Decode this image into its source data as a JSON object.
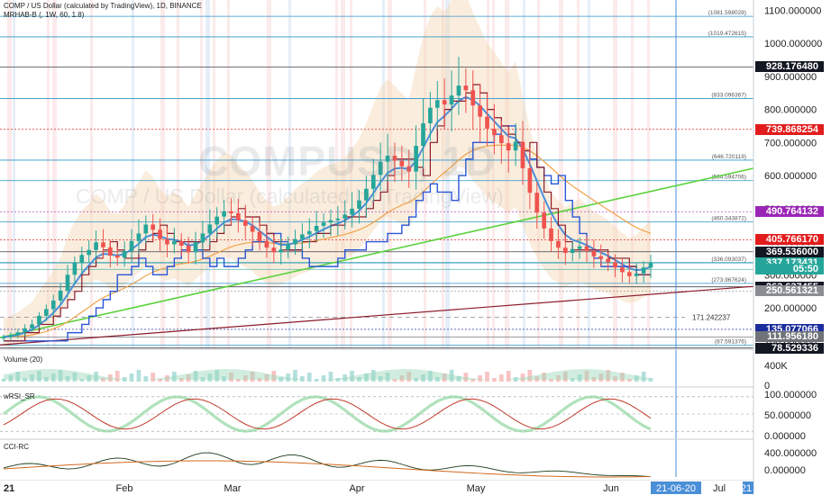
{
  "header": {
    "symbol_line": "COMP / US Dollar (calculated by TradingView), 1D, BINANCE",
    "indicator_line": "MRHAB-B (, 1W, 60, 1.8)"
  },
  "watermark": {
    "ticker": "COMPUSD, 1D",
    "name": "COMP / US Dollar (calculated by TradingView)"
  },
  "panes": {
    "volume_label": "Volume (20)",
    "wrsi_label": "wRSI_SR",
    "cci_label": "CCI-RC"
  },
  "colors": {
    "bull": "#26a69a",
    "bear": "#ef5350",
    "trend_green": "#5ad23c",
    "trend_red": "#8b1a2a",
    "fib_line": "#2f95c8",
    "ema_blue": "#4a8fd8",
    "step_blue": "#2b56d6",
    "step_red": "#8b1a2a",
    "band": "#f4d7b4"
  },
  "chart_data": [
    {
      "type": "candlestick",
      "title": "COMP / US Dollar (calculated by TradingView), 1D, BINANCE",
      "x_ticks": [
        "21",
        "Feb",
        "Mar",
        "Apr",
        "May",
        "Jun",
        "21-06-20",
        "Jul",
        "21"
      ],
      "y_ticks": [
        100,
        200,
        300,
        400,
        500,
        600,
        700,
        800,
        900,
        1000,
        1100
      ],
      "y_tick_labels": [
        "100.000000",
        "200.000000",
        "300.000000",
        "400.000000",
        "500.000000",
        "600.000000",
        "700.000000",
        "800.000000",
        "900.000000",
        "1000.000000",
        "1100.000000"
      ],
      "ylim": [
        75,
        1120
      ],
      "fib_levels": [
        {
          "label": "(1081.598028)",
          "value": 1081.598
        },
        {
          "label": "(1019.472615)",
          "value": 1019.473
        },
        {
          "label": "(833.096367)",
          "value": 833.096
        },
        {
          "label": "(646.720119)",
          "value": 646.72
        },
        {
          "label": "(584.594706)",
          "value": 584.595
        },
        {
          "label": "(460.343872)",
          "value": 460.344
        },
        {
          "label": "(336.093037)",
          "value": 336.093
        },
        {
          "label": "(273.967624)",
          "value": 273.968
        },
        {
          "label": "(87.591376)",
          "value": 87.591
        }
      ],
      "price_tags": [
        {
          "label": "928.176480",
          "value": 928.18,
          "color": "#131722"
        },
        {
          "label": "739.868254",
          "value": 739.87,
          "color": "#e21c1c"
        },
        {
          "label": "490.764132",
          "value": 490.76,
          "color": "#9b26b6"
        },
        {
          "label": "405.766170",
          "value": 405.77,
          "color": "#e21c1c"
        },
        {
          "label": "369.536000",
          "value": 369.54,
          "color": "#131722"
        },
        {
          "label": "337.173431",
          "value": 337.17,
          "color": "#26a69a"
        },
        {
          "label": "05:50",
          "value": 316.5,
          "color": "#26a69a"
        },
        {
          "label": "263.637455",
          "value": 263.64,
          "color": "#131722"
        },
        {
          "label": "250.561321",
          "value": 250.56,
          "color": "#8a8d93"
        },
        {
          "label": "135.077066",
          "value": 135.08,
          "color": "#1b2c9c"
        },
        {
          "label": "111.956180",
          "value": 111.96,
          "color": "#6f7379"
        },
        {
          "label": "78.529336",
          "value": 78.53,
          "color": "#131722"
        }
      ],
      "annotation": {
        "label": "171.242237",
        "value": 171.24
      },
      "close_series": [
        112,
        118,
        126,
        138,
        150,
        176,
        196,
        222,
        252,
        300,
        335,
        360,
        375,
        398,
        383,
        358,
        352,
        372,
        402,
        425,
        452,
        436,
        408,
        392,
        402,
        388,
        368,
        398,
        425,
        452,
        476,
        492,
        486,
        465,
        448,
        430,
        402,
        382,
        368,
        376,
        392,
        408,
        422,
        432,
        448,
        458,
        465,
        470,
        482,
        500,
        525,
        560,
        602,
        642,
        660,
        645,
        628,
        612,
        690,
        758,
        805,
        828,
        815,
        842,
        872,
        858,
        812,
        778,
        742,
        722,
        698,
        676,
        702,
        622,
        548,
        488,
        440,
        402,
        382,
        366,
        378,
        386,
        372,
        356,
        348,
        338,
        322,
        308,
        296,
        304,
        322,
        337
      ]
    },
    {
      "type": "bar",
      "title": "Volume (20)",
      "y_ticks": [
        "400K",
        "0"
      ]
    },
    {
      "type": "line",
      "title": "wRSI_SR",
      "y_ticks": [
        "100.000000",
        "50.000000",
        "0.000000"
      ]
    },
    {
      "type": "line",
      "title": "CCI-RC",
      "y_ticks": [
        "400.000000",
        "0.000000"
      ]
    }
  ]
}
